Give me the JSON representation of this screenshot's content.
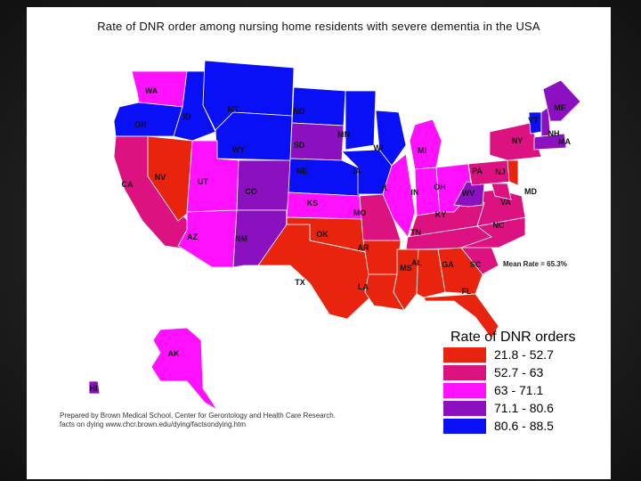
{
  "title": "Rate of DNR order among nursing home residents with severe dementia in the USA",
  "mean_rate": "Mean Rate = 65.3%",
  "legend": {
    "title": "Rate of DNR orders",
    "ranges": [
      {
        "label": "21.8 - 52.7",
        "color": "#e8240f"
      },
      {
        "label": "52.7 - 63",
        "color": "#dc1280"
      },
      {
        "label": "63 - 71.1",
        "color": "#ff10ff"
      },
      {
        "label": "71.1 - 80.6",
        "color": "#8a10c0"
      },
      {
        "label": "80.6 - 88.5",
        "color": "#0a10f5"
      }
    ]
  },
  "credits": {
    "line1": "Prepared by Brown Medical School, Center for Gerontology and Health Care Research.",
    "line2": "facts on dying www.chcr.brown.edu/dying/factsondying.htm"
  },
  "states": [
    {
      "abbr": "WA",
      "bin": 2
    },
    {
      "abbr": "OR",
      "bin": 4
    },
    {
      "abbr": "CA",
      "bin": 1
    },
    {
      "abbr": "NV",
      "bin": 0
    },
    {
      "abbr": "ID",
      "bin": 4
    },
    {
      "abbr": "MT",
      "bin": 4
    },
    {
      "abbr": "WY",
      "bin": 4
    },
    {
      "abbr": "UT",
      "bin": 2
    },
    {
      "abbr": "AZ",
      "bin": 2
    },
    {
      "abbr": "CO",
      "bin": 3
    },
    {
      "abbr": "NM",
      "bin": 3
    },
    {
      "abbr": "ND",
      "bin": 4
    },
    {
      "abbr": "SD",
      "bin": 3
    },
    {
      "abbr": "NE",
      "bin": 4
    },
    {
      "abbr": "KS",
      "bin": 2
    },
    {
      "abbr": "OK",
      "bin": 0
    },
    {
      "abbr": "TX",
      "bin": 0
    },
    {
      "abbr": "MN",
      "bin": 4
    },
    {
      "abbr": "IA",
      "bin": 4
    },
    {
      "abbr": "MO",
      "bin": 1
    },
    {
      "abbr": "AR",
      "bin": 0
    },
    {
      "abbr": "LA",
      "bin": 0
    },
    {
      "abbr": "WI",
      "bin": 4
    },
    {
      "abbr": "IL",
      "bin": 2
    },
    {
      "abbr": "MI",
      "bin": 2
    },
    {
      "abbr": "IN",
      "bin": 2
    },
    {
      "abbr": "OH",
      "bin": 2
    },
    {
      "abbr": "KY",
      "bin": 1
    },
    {
      "abbr": "TN",
      "bin": 1
    },
    {
      "abbr": "MS",
      "bin": 0
    },
    {
      "abbr": "AL",
      "bin": 0
    },
    {
      "abbr": "GA",
      "bin": 0
    },
    {
      "abbr": "FL",
      "bin": 0
    },
    {
      "abbr": "SC",
      "bin": 1
    },
    {
      "abbr": "NC",
      "bin": 1
    },
    {
      "abbr": "VA",
      "bin": 1
    },
    {
      "abbr": "WV",
      "bin": 3
    },
    {
      "abbr": "PA",
      "bin": 1
    },
    {
      "abbr": "NY",
      "bin": 1
    },
    {
      "abbr": "VT",
      "bin": 4
    },
    {
      "abbr": "NH",
      "bin": 3
    },
    {
      "abbr": "ME",
      "bin": 3
    },
    {
      "abbr": "MA",
      "bin": 3
    },
    {
      "abbr": "NJ",
      "bin": 0
    },
    {
      "abbr": "MD",
      "bin": 1
    },
    {
      "abbr": "AK",
      "bin": 2
    },
    {
      "abbr": "HI",
      "bin": 3
    }
  ]
}
